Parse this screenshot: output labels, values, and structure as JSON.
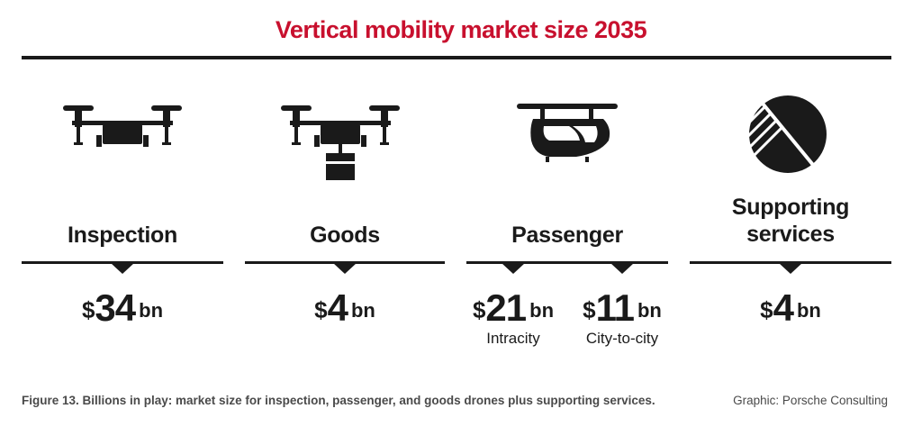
{
  "chart_data": {
    "type": "table",
    "title": "Vertical mobility market size 2035",
    "categories": [
      {
        "label": "Inspection",
        "currency": "$",
        "value": 34,
        "unit": "bn"
      },
      {
        "label": "Goods",
        "currency": "$",
        "value": 4,
        "unit": "bn"
      },
      {
        "label": "Passenger",
        "segments": [
          {
            "currency": "$",
            "value": 21,
            "unit": "bn",
            "label": "Intracity"
          },
          {
            "currency": "$",
            "value": 11,
            "unit": "bn",
            "label": "City-to-city"
          }
        ]
      },
      {
        "label": "Supporting services",
        "currency": "$",
        "value": 4,
        "unit": "bn"
      }
    ]
  },
  "icons": [
    "drone-icon",
    "cargo-drone-icon",
    "passenger-air-taxi-icon",
    "pie-chart-icon"
  ],
  "colors": {
    "title": "#c8102e",
    "ink": "#1a1a1a",
    "caption": "#4a4a4a"
  },
  "caption": "Figure 13. Billions in play: market size for inspection, passenger, and goods drones plus supporting services.",
  "credit": "Graphic: Porsche Consulting"
}
